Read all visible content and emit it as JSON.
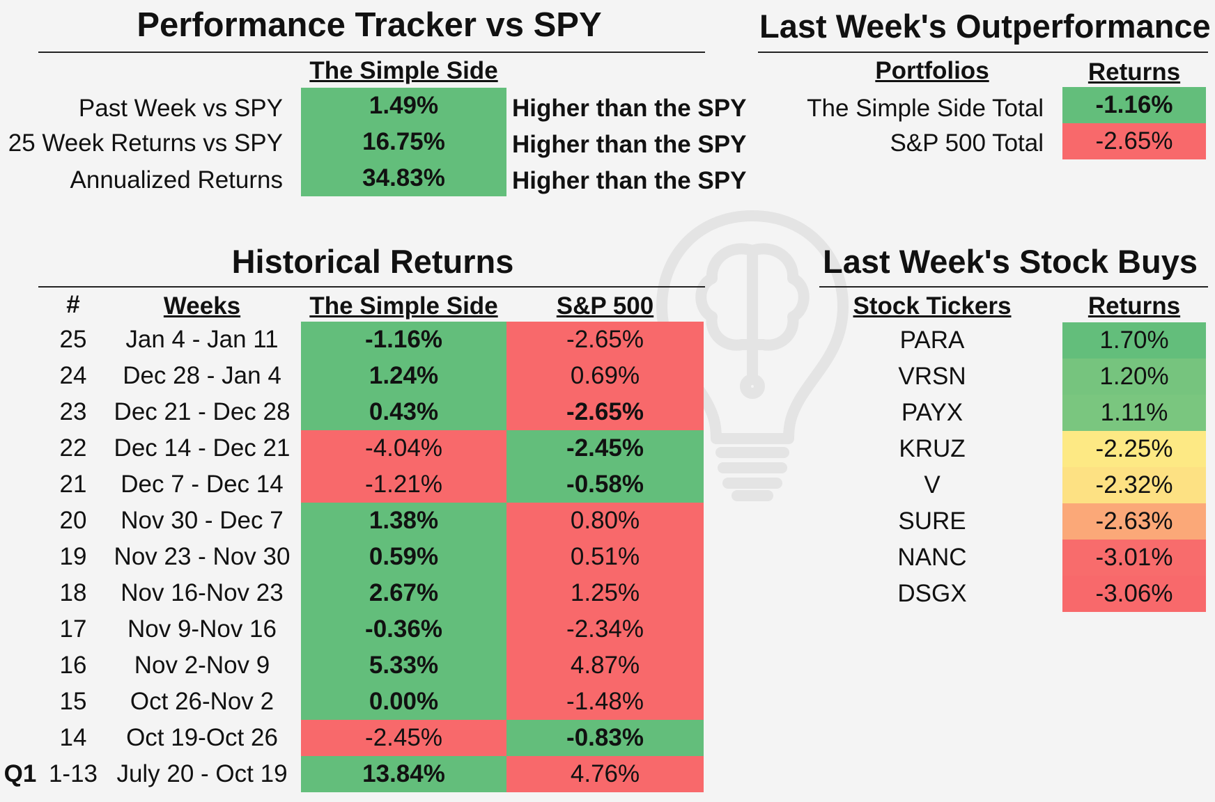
{
  "tracker": {
    "title": "Performance Tracker vs SPY",
    "column_header": "The Simple Side",
    "rows": [
      {
        "label": "Past Week vs SPY",
        "value": "1.49%",
        "note": "Higher than the SPY"
      },
      {
        "label": "25 Week Returns vs SPY",
        "value": "16.75%",
        "note": "Higher than the SPY"
      },
      {
        "label": "Annualized Returns",
        "value": "34.83%",
        "note": "Higher than the SPY"
      }
    ]
  },
  "outperformance": {
    "title": "Last Week's Outperformance",
    "col_portfolios": "Portfolios",
    "col_returns": "Returns",
    "rows": [
      {
        "label": "The Simple Side Total",
        "value": "-1.16%",
        "color": "#63be7b",
        "bold": true
      },
      {
        "label": "S&P 500 Total",
        "value": "-2.65%",
        "color": "#f8696b",
        "bold": false
      }
    ]
  },
  "historical": {
    "title": "Historical Returns",
    "col_num": "#",
    "col_weeks": "Weeks",
    "col_simple": "The Simple Side",
    "col_sp": "S&P 500",
    "rows": [
      {
        "num": "25",
        "weeks": "Jan 4 - Jan 11",
        "simple": "-1.16%",
        "sp": "-2.65%",
        "winner": "simple"
      },
      {
        "num": "24",
        "weeks": "Dec 28 - Jan 4",
        "simple": "1.24%",
        "sp": "0.69%",
        "winner": "simple"
      },
      {
        "num": "23",
        "weeks": "Dec 21 - Dec 28",
        "simple": "0.43%",
        "sp": "-2.65%",
        "winner": "simple",
        "sp_bold": true
      },
      {
        "num": "22",
        "weeks": "Dec 14 - Dec 21",
        "simple": "-4.04%",
        "sp": "-2.45%",
        "winner": "sp"
      },
      {
        "num": "21",
        "weeks": "Dec 7 - Dec 14",
        "simple": "-1.21%",
        "sp": "-0.58%",
        "winner": "sp"
      },
      {
        "num": "20",
        "weeks": "Nov 30 - Dec 7",
        "simple": "1.38%",
        "sp": "0.80%",
        "winner": "simple"
      },
      {
        "num": "19",
        "weeks": "Nov 23 - Nov 30",
        "simple": "0.59%",
        "sp": "0.51%",
        "winner": "simple"
      },
      {
        "num": "18",
        "weeks": "Nov 16-Nov 23",
        "simple": "2.67%",
        "sp": "1.25%",
        "winner": "simple"
      },
      {
        "num": "17",
        "weeks": "Nov 9-Nov 16",
        "simple": "-0.36%",
        "sp": "-2.34%",
        "winner": "simple"
      },
      {
        "num": "16",
        "weeks": "Nov 2-Nov 9",
        "simple": "5.33%",
        "sp": "4.87%",
        "winner": "simple"
      },
      {
        "num": "15",
        "weeks": "Oct 26-Nov 2",
        "simple": "0.00%",
        "sp": "-1.48%",
        "winner": "simple"
      },
      {
        "num": "14",
        "weeks": "Oct 19-Oct 26",
        "simple": "-2.45%",
        "sp": "-0.83%",
        "winner": "sp"
      },
      {
        "num": "1-13",
        "prefix": "Q1",
        "weeks": "July 20 - Oct 19",
        "simple": "13.84%",
        "sp": "4.76%",
        "winner": "simple"
      }
    ]
  },
  "stock_buys": {
    "title": "Last Week's Stock Buys",
    "col_tickers": "Stock Tickers",
    "col_returns": "Returns",
    "rows": [
      {
        "ticker": "PARA",
        "value": "1.70%",
        "color": "#63be7b"
      },
      {
        "ticker": "VRSN",
        "value": "1.20%",
        "color": "#76c47e"
      },
      {
        "ticker": "PAYX",
        "value": "1.11%",
        "color": "#7ac67f"
      },
      {
        "ticker": "KRUZ",
        "value": "-2.25%",
        "color": "#fde984"
      },
      {
        "ticker": "V",
        "value": "-2.32%",
        "color": "#fde183"
      },
      {
        "ticker": "SURE",
        "value": "-2.63%",
        "color": "#fba878"
      },
      {
        "ticker": "NANC",
        "value": "-3.01%",
        "color": "#f86c6c"
      },
      {
        "ticker": "DSGX",
        "value": "-3.06%",
        "color": "#f8696b"
      }
    ]
  },
  "watermark": {
    "icon": "lightbulb-brain-icon"
  }
}
